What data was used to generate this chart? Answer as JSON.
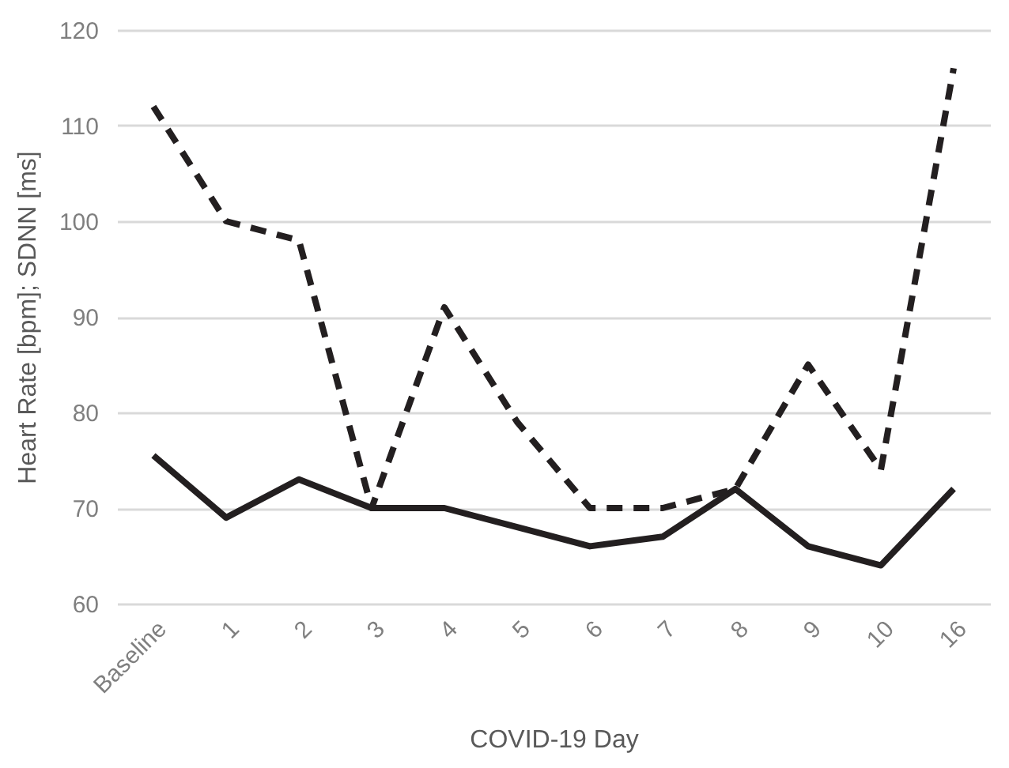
{
  "chart_data": {
    "type": "line",
    "xlabel": "COVID-19 Day",
    "ylabel": "Heart Rate [bpm]; SDNN [ms]",
    "categories": [
      "Baseline",
      "1",
      "2",
      "3",
      "4",
      "5",
      "6",
      "7",
      "8",
      "9",
      "10",
      "16"
    ],
    "series": [
      {
        "color": "#231f20",
        "line_style": "solid",
        "values": [
          75.5,
          69,
          73,
          70,
          70,
          68,
          66,
          67,
          72,
          66,
          64,
          72
        ]
      },
      {
        "color": "#231f20",
        "line_style": "dashed",
        "values": [
          112,
          100,
          98,
          70,
          91,
          79,
          70,
          70,
          72,
          85,
          74,
          116
        ]
      }
    ],
    "ylim": [
      60,
      120
    ],
    "yticks": [
      60,
      70,
      80,
      90,
      100,
      110,
      120
    ],
    "grid": "y",
    "marker": "none"
  }
}
